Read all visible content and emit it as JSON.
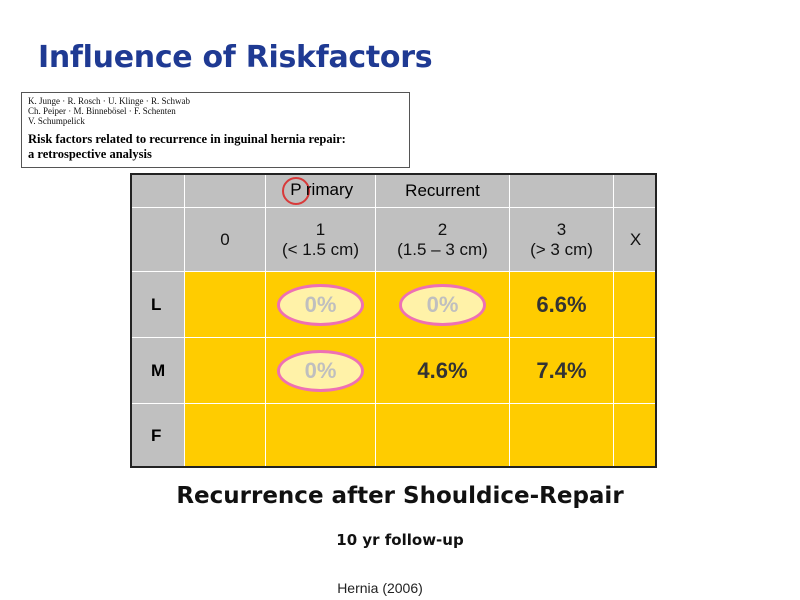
{
  "title": "Influence of Riskfactors",
  "citation": {
    "authors_line1": "K. Junge · R. Rosch · U. Klinge · R. Schwab",
    "authors_line2": "Ch. Peiper · M. Binnebösel · F. Schenten",
    "authors_line3": "V. Schumpelick",
    "paper_title_line1": "Risk factors related to recurrence in inguinal hernia repair:",
    "paper_title_line2": "a retrospective analysis"
  },
  "table": {
    "group_header": {
      "primary_first": "P",
      "primary_rest": "rimary",
      "recurrent_first": "R",
      "recurrent_rest": "ecurrent"
    },
    "columns": [
      {
        "line1": "0",
        "line2": ""
      },
      {
        "line1": "1",
        "line2": "(< 1.5 cm)"
      },
      {
        "line1": "2",
        "line2": "(1.5 – 3 cm)"
      },
      {
        "line1": "3",
        "line2": "(> 3 cm)"
      },
      {
        "line1": "X",
        "line2": ""
      }
    ],
    "rows": [
      {
        "label": "L",
        "values": [
          "",
          "0%",
          "0%",
          "6.6%",
          ""
        ]
      },
      {
        "label": "M",
        "values": [
          "",
          "0%",
          "4.6%",
          "7.4%",
          ""
        ]
      },
      {
        "label": "F",
        "values": [
          "",
          "",
          "",
          "",
          ""
        ]
      }
    ]
  },
  "subtitle": "Recurrence after Shouldice-Repair",
  "followup": "10 yr follow-up",
  "source": "Hernia (2006)",
  "colors": {
    "title": "#1f3a93",
    "header_gray": "#c0c0c0",
    "cell_yellow": "#ffcc00",
    "oval_border": "#ee70b4",
    "oval_fill": "#fff2a8",
    "circle_red": "#d83a3a"
  }
}
